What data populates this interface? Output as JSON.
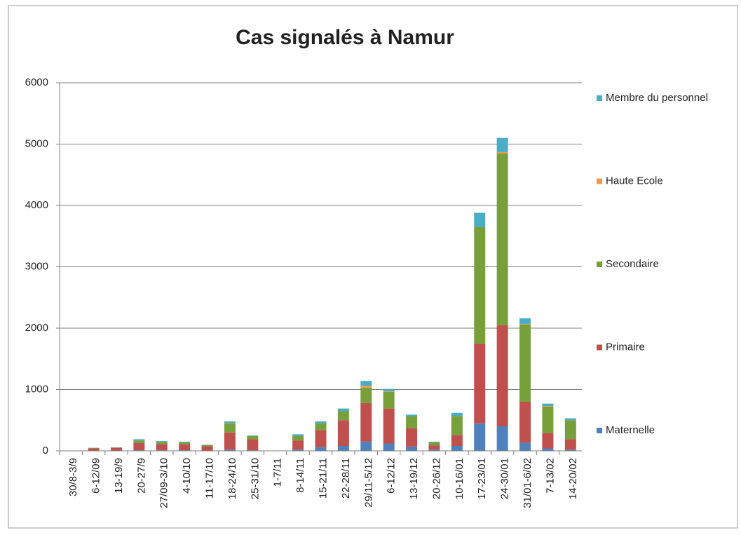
{
  "chart_data": {
    "type": "stacked_bar",
    "title": "Cas signalés à Namur",
    "categories": [
      "30/8-3/9",
      "6-12/09",
      "13-19/9",
      "20-27/9",
      "27/09-3/10",
      "4-10/10",
      "11-17/10",
      "18-24/10",
      "25-31/10",
      "1-7/11",
      "8-14/11",
      "15-21/11",
      "22-28/11",
      "29/11-5/12",
      "6-12/12",
      "13-19/12",
      "20-26/12",
      "10-16/01",
      "17-23/01",
      "24-30/01",
      "31/01-6/02",
      "7-13/02",
      "14-20/02"
    ],
    "series": [
      {
        "name": "Maternelle",
        "color": "#4f81bd",
        "values": [
          0,
          5,
          5,
          10,
          10,
          10,
          5,
          20,
          10,
          0,
          20,
          60,
          80,
          150,
          120,
          70,
          20,
          80,
          450,
          400,
          130,
          40,
          20
        ]
      },
      {
        "name": "Primaire",
        "color": "#c0504d",
        "values": [
          0,
          35,
          45,
          120,
          100,
          100,
          70,
          280,
          180,
          0,
          150,
          280,
          420,
          630,
          570,
          300,
          70,
          180,
          1300,
          1650,
          670,
          250,
          170
        ]
      },
      {
        "name": "Secondaire",
        "color": "#77a03a",
        "values": [
          0,
          5,
          5,
          40,
          35,
          30,
          20,
          150,
          50,
          0,
          70,
          110,
          150,
          250,
          270,
          190,
          50,
          310,
          1900,
          2800,
          1260,
          430,
          310
        ]
      },
      {
        "name": "Haute Ecole",
        "color": "#f79646",
        "values": [
          0,
          0,
          0,
          0,
          0,
          0,
          0,
          5,
          0,
          0,
          0,
          0,
          0,
          30,
          10,
          0,
          0,
          0,
          0,
          20,
          10,
          10,
          0
        ]
      },
      {
        "name": "Membre du personnel",
        "color": "#4bacc6",
        "values": [
          0,
          5,
          5,
          20,
          15,
          10,
          5,
          25,
          10,
          0,
          30,
          30,
          40,
          80,
          40,
          30,
          10,
          50,
          230,
          230,
          90,
          40,
          30
        ]
      }
    ],
    "ylim": [
      0,
      6000
    ],
    "yticks": [
      0,
      1000,
      2000,
      3000,
      4000,
      5000,
      6000
    ],
    "grid": true,
    "legend": "right"
  }
}
